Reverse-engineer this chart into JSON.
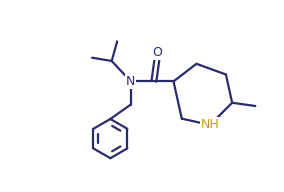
{
  "background_color": "#ffffff",
  "line_color": "#2b2b6b",
  "nh_color": "#c8a000",
  "line_width": 1.6,
  "font_size": 8.5,
  "fig_width": 2.84,
  "fig_height": 1.92,
  "dpi": 100,
  "xlim": [
    0,
    10
  ],
  "ylim": [
    0,
    7
  ]
}
